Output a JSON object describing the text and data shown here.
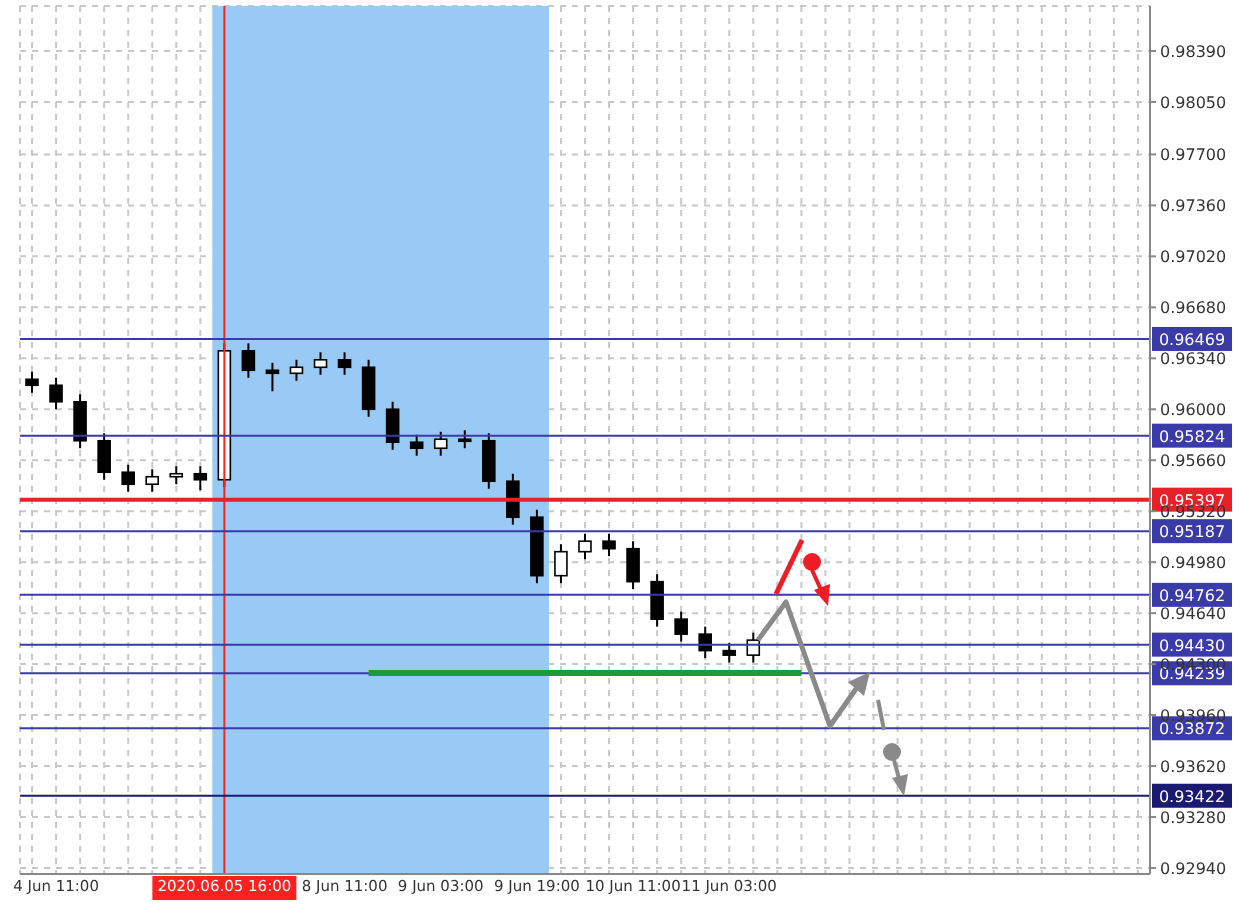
{
  "chart_data": {
    "type": "candlestick",
    "color": "#000000",
    "categories": [
      null,
      "4 Jun 11:00",
      null,
      null,
      null,
      null,
      null,
      null,
      "2020.06.05 16:00",
      null,
      null,
      null,
      null,
      "8 Jun 11:00",
      null,
      null,
      null,
      "9 Jun 03:00",
      null,
      null,
      null,
      "9 Jun 19:00",
      null,
      null,
      null,
      "10 Jun 11:00",
      null,
      null,
      null,
      "11 Jun 03:00",
      null,
      null,
      null,
      null,
      null,
      null,
      null,
      null,
      null,
      null,
      null,
      null,
      null,
      null,
      null,
      null,
      null
    ],
    "ohlc": [
      [
        0.962,
        0.9625,
        0.9611,
        0.9616
      ],
      [
        0.9616,
        0.9621,
        0.96,
        0.9605
      ],
      [
        0.9605,
        0.961,
        0.9574,
        0.9579
      ],
      [
        0.9579,
        0.9584,
        0.9553,
        0.9558
      ],
      [
        0.9558,
        0.9563,
        0.9545,
        0.955
      ],
      [
        0.955,
        0.956,
        0.9545,
        0.9555
      ],
      [
        0.9555,
        0.9562,
        0.955,
        0.9557
      ],
      [
        0.9557,
        0.9562,
        0.9546,
        0.9553
      ],
      [
        0.9553,
        0.9644,
        0.9548,
        0.9639
      ],
      [
        0.9639,
        0.9644,
        0.9621,
        0.9626
      ],
      [
        0.9626,
        0.9631,
        0.9612,
        0.9624
      ],
      [
        0.9624,
        0.9633,
        0.9619,
        0.9628
      ],
      [
        0.9628,
        0.9638,
        0.9623,
        0.9633
      ],
      [
        0.9633,
        0.9638,
        0.9623,
        0.9628
      ],
      [
        0.9628,
        0.9633,
        0.9595,
        0.96
      ],
      [
        0.96,
        0.9605,
        0.9573,
        0.9578
      ],
      [
        0.9578,
        0.9583,
        0.9569,
        0.9574
      ],
      [
        0.9574,
        0.9585,
        0.9569,
        0.958
      ],
      [
        0.958,
        0.9586,
        0.9574,
        0.9579
      ],
      [
        0.9579,
        0.9584,
        0.9547,
        0.9552
      ],
      [
        0.9552,
        0.9557,
        0.9523,
        0.9528
      ],
      [
        0.9528,
        0.9533,
        0.9484,
        0.9489
      ],
      [
        0.9489,
        0.951,
        0.9484,
        0.9505
      ],
      [
        0.9505,
        0.9517,
        0.95,
        0.9512
      ],
      [
        0.9512,
        0.9517,
        0.9502,
        0.9507
      ],
      [
        0.9507,
        0.9512,
        0.948,
        0.9485
      ],
      [
        0.9485,
        0.949,
        0.9455,
        0.946
      ],
      [
        0.946,
        0.9465,
        0.9445,
        0.945
      ],
      [
        0.945,
        0.9455,
        0.9434,
        0.9439
      ],
      [
        0.9439,
        0.9444,
        0.9431,
        0.9436
      ],
      [
        0.9436,
        0.9451,
        0.9431,
        0.9446
      ],
      null,
      null,
      null,
      null,
      null,
      null,
      null,
      null,
      null,
      null,
      null,
      null,
      null,
      null,
      null,
      null
    ],
    "series": [
      {
        "type": "line",
        "color": "#1e9a3c",
        "values": [
          null,
          null,
          null,
          null,
          null,
          null,
          null,
          null,
          null,
          null,
          null,
          null,
          null,
          null,
          0.9424,
          0.9424,
          0.9424,
          0.9424,
          0.9424,
          0.9424,
          0.9424,
          0.9424,
          0.9424,
          0.9424,
          0.9424,
          0.9424,
          0.9424,
          0.9424,
          0.9424,
          0.9424,
          0.9424,
          0.9424,
          0.9424,
          null,
          null,
          null,
          null,
          null,
          null,
          null,
          null,
          null,
          null,
          null,
          null,
          null,
          null
        ]
      }
    ],
    "ylim": [
      0.929,
      0.9869
    ],
    "yticks": [
      {
        "value": 0.9294,
        "label": "0.92940"
      },
      {
        "value": 0.9328,
        "label": "0.93280"
      },
      {
        "value": 0.9362,
        "label": "0.93620"
      },
      {
        "value": 0.9396,
        "label": "0.93960"
      },
      {
        "value": 0.943,
        "label": "0.94300"
      },
      {
        "value": 0.9464,
        "label": "0.94640"
      },
      {
        "value": 0.9498,
        "label": "0.94980"
      },
      {
        "value": 0.9532,
        "label": "0.95320"
      },
      {
        "value": 0.9566,
        "label": "0.95660"
      },
      {
        "value": 0.96,
        "label": "0.96000"
      },
      {
        "value": 0.9634,
        "label": "0.96340"
      },
      {
        "value": 0.9668,
        "label": "0.96680"
      },
      {
        "value": 0.9702,
        "label": "0.97020"
      },
      {
        "value": 0.9736,
        "label": "0.97360"
      },
      {
        "value": 0.977,
        "label": "0.97700"
      },
      {
        "value": 0.9805,
        "label": "0.98050"
      },
      {
        "value": 0.9839,
        "label": "0.98390"
      }
    ],
    "grid": true,
    "legend": false,
    "bands": [
      {
        "axis": "x",
        "from": "2020.06.05 16:00",
        "to": "9 Jun 19:00",
        "color": "#99c9f5"
      }
    ],
    "ref_lines": [
      {
        "axis": "x",
        "value": "2020.06.05 16:00",
        "color": "#ff2020"
      },
      {
        "axis": "y",
        "value": 0.96469,
        "label": "0.96469",
        "color": "#3a3aa8"
      },
      {
        "axis": "y",
        "value": 0.95824,
        "label": "0.95824",
        "color": "#3a3aa8"
      },
      {
        "axis": "y",
        "value": 0.95397,
        "label": "0.95397",
        "color": "#e8202a"
      },
      {
        "axis": "y",
        "value": 0.95187,
        "label": "0.95187",
        "color": "#3a3aa8"
      },
      {
        "axis": "y",
        "value": 0.94762,
        "label": "0.94762",
        "color": "#3a3aa8"
      },
      {
        "axis": "y",
        "value": 0.9443,
        "label": "0.94430",
        "color": "#3a3aa8"
      },
      {
        "axis": "y",
        "value": 0.94239,
        "label": "0.94239",
        "color": "#3a3aa8"
      },
      {
        "axis": "y",
        "value": 0.93872,
        "label": "0.93872",
        "color": "#3a3aa8"
      },
      {
        "axis": "y",
        "value": 0.93422,
        "label": "0.93422",
        "color": "#1a1a70"
      }
    ]
  }
}
